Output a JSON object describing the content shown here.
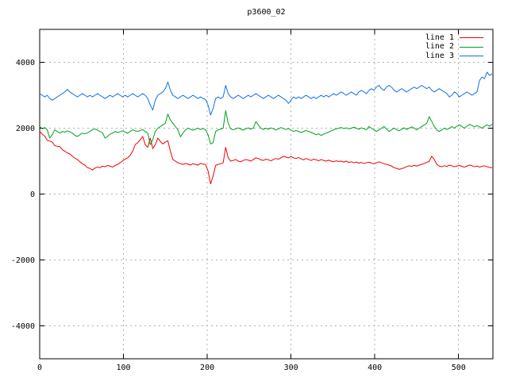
{
  "window": {
    "background": "#ffffff"
  },
  "chart_data": {
    "type": "line",
    "title": "p3600_02",
    "xlabel": "",
    "ylabel": "",
    "xlim": [
      0,
      541
    ],
    "ylim": [
      -5000,
      5000
    ],
    "x_ticks": [
      0,
      100,
      200,
      300,
      400,
      500
    ],
    "y_ticks": [
      -4000,
      -2000,
      0,
      2000,
      4000
    ],
    "grid": true,
    "grid_color": "#b0b0b0",
    "border_color": "#000000",
    "legend_position": "top-right-inside",
    "x_step": 3,
    "series": [
      {
        "name": "line 1",
        "color": "#f00000",
        "values": [
          1900,
          1820,
          1760,
          1630,
          1610,
          1580,
          1470,
          1450,
          1440,
          1350,
          1300,
          1250,
          1220,
          1150,
          1090,
          1050,
          980,
          920,
          880,
          800,
          780,
          730,
          790,
          820,
          800,
          850,
          830,
          870,
          850,
          820,
          870,
          900,
          950,
          1010,
          1060,
          1100,
          1180,
          1300,
          1500,
          1560,
          1650,
          1750,
          1500,
          1420,
          1700,
          1380,
          1500,
          1700,
          1600,
          1520,
          1580,
          1620,
          1300,
          1050,
          1000,
          950,
          920,
          900,
          930,
          910,
          880,
          920,
          900,
          880,
          930,
          910,
          900,
          700,
          310,
          550,
          870,
          900,
          920,
          950,
          1420,
          1100,
          1000,
          1020,
          1050,
          1000,
          980,
          1020,
          1050,
          1030,
          1000,
          1050,
          1100,
          1080,
          1040,
          1020,
          1060,
          1040,
          1010,
          1050,
          1080,
          1060,
          1100,
          1150,
          1120,
          1100,
          1140,
          1100,
          1080,
          1110,
          1070,
          1040,
          1080,
          1050,
          1020,
          1060,
          1040,
          1010,
          1050,
          1020,
          1000,
          1030,
          1000,
          980,
          1010,
          990,
          1000,
          970,
          1000,
          960,
          980,
          950,
          970,
          940,
          960,
          930,
          950,
          970,
          940,
          920,
          950,
          980,
          950,
          920,
          900,
          880,
          850,
          800,
          780,
          750,
          770,
          800,
          830,
          860,
          840,
          870,
          850,
          880,
          900,
          930,
          960,
          1000,
          1150,
          1050,
          900,
          850,
          830,
          860,
          840,
          880,
          860,
          830,
          850,
          870,
          840,
          820,
          850,
          880,
          860,
          830,
          850,
          820,
          840,
          860,
          830,
          810,
          800
        ]
      },
      {
        "name": "line 2",
        "color": "#00a020",
        "values": [
          2050,
          1980,
          2020,
          1950,
          1700,
          1800,
          1950,
          1900,
          1850,
          1900,
          1880,
          1920,
          1890,
          1850,
          1780,
          1750,
          1800,
          1850,
          1830,
          1860,
          1900,
          1950,
          1980,
          1940,
          1900,
          1860,
          1700,
          1750,
          1820,
          1850,
          1900,
          1870,
          1890,
          1920,
          1880,
          1850,
          1900,
          1950,
          1920,
          1900,
          1930,
          1960,
          1900,
          1850,
          1500,
          1650,
          1900,
          2000,
          2050,
          2100,
          2150,
          2430,
          2250,
          2150,
          2050,
          1950,
          1740,
          1850,
          1950,
          2000,
          1970,
          1940,
          1970,
          2000,
          1960,
          1990,
          1950,
          1800,
          1520,
          1560,
          1900,
          1950,
          1970,
          2000,
          2530,
          2150,
          1980,
          1950,
          1980,
          2010,
          1970,
          1940,
          1980,
          2010,
          1970,
          2000,
          2200,
          2100,
          2000,
          1960,
          2000,
          1970,
          2010,
          1980,
          1940,
          1980,
          2020,
          1990,
          1960,
          1990,
          1940,
          1900,
          1930,
          1900,
          1870,
          1900,
          1930,
          1900,
          1870,
          1840,
          1800,
          1830,
          1780,
          1820,
          1850,
          1880,
          1920,
          1950,
          1980,
          2000,
          2020,
          1990,
          2010,
          1980,
          2000,
          2030,
          2000,
          1970,
          2010,
          1980,
          1950,
          2050,
          2000,
          1950,
          1900,
          1950,
          2000,
          2050,
          1980,
          1900,
          1950,
          2000,
          1960,
          1920,
          1970,
          2010,
          1960,
          2000,
          2040,
          2000,
          1950,
          2000,
          2050,
          2100,
          2150,
          2350,
          2200,
          2050,
          1950,
          1900,
          1950,
          2000,
          1960,
          2000,
          2050,
          2000,
          2060,
          2100,
          2050,
          2000,
          2060,
          2120,
          2080,
          2040,
          2080,
          2040,
          2000,
          2060,
          2100,
          2060,
          2120
        ]
      },
      {
        "name": "line 3",
        "color": "#1170e8",
        "values": [
          3050,
          3000,
          2950,
          3000,
          2900,
          2850,
          2900,
          2950,
          3000,
          3050,
          3100,
          3180,
          3100,
          3050,
          3000,
          2950,
          3000,
          3050,
          3000,
          2950,
          3000,
          2950,
          3000,
          3050,
          3000,
          2950,
          2900,
          2950,
          3000,
          2950,
          3000,
          3050,
          3000,
          2950,
          3000,
          2950,
          3000,
          3050,
          3000,
          2950,
          3000,
          3050,
          3000,
          2900,
          2700,
          2550,
          2850,
          3000,
          3050,
          3100,
          3200,
          3400,
          3150,
          3000,
          2950,
          2900,
          2950,
          3000,
          2950,
          2900,
          2950,
          3000,
          2950,
          2900,
          2950,
          2900,
          2870,
          2700,
          2400,
          2600,
          2900,
          2950,
          2900,
          2950,
          3300,
          3050,
          2950,
          2900,
          2950,
          3000,
          2950,
          2900,
          2950,
          3000,
          2950,
          3000,
          3050,
          3000,
          2950,
          2900,
          2950,
          3000,
          2950,
          2900,
          2950,
          3000,
          2950,
          2900,
          2850,
          2750,
          2850,
          2950,
          2900,
          2950,
          2900,
          2950,
          3000,
          2950,
          2900,
          2950,
          2900,
          2950,
          3000,
          2950,
          3000,
          2950,
          3000,
          3050,
          3000,
          3050,
          3100,
          3050,
          3000,
          3050,
          3100,
          3050,
          3000,
          3100,
          3150,
          3100,
          3050,
          3150,
          3200,
          3150,
          3250,
          3300,
          3200,
          3150,
          3250,
          3300,
          3250,
          3150,
          3100,
          3150,
          3200,
          3150,
          3100,
          3150,
          3200,
          3250,
          3200,
          3250,
          3300,
          3250,
          3200,
          3250,
          3150,
          3100,
          3150,
          3200,
          3150,
          3100,
          3050,
          2950,
          3000,
          3100,
          3050,
          2950,
          3000,
          3050,
          3100,
          3050,
          3000,
          3050,
          3100,
          3450,
          3550,
          3500,
          3700,
          3600,
          3650
        ]
      }
    ]
  }
}
